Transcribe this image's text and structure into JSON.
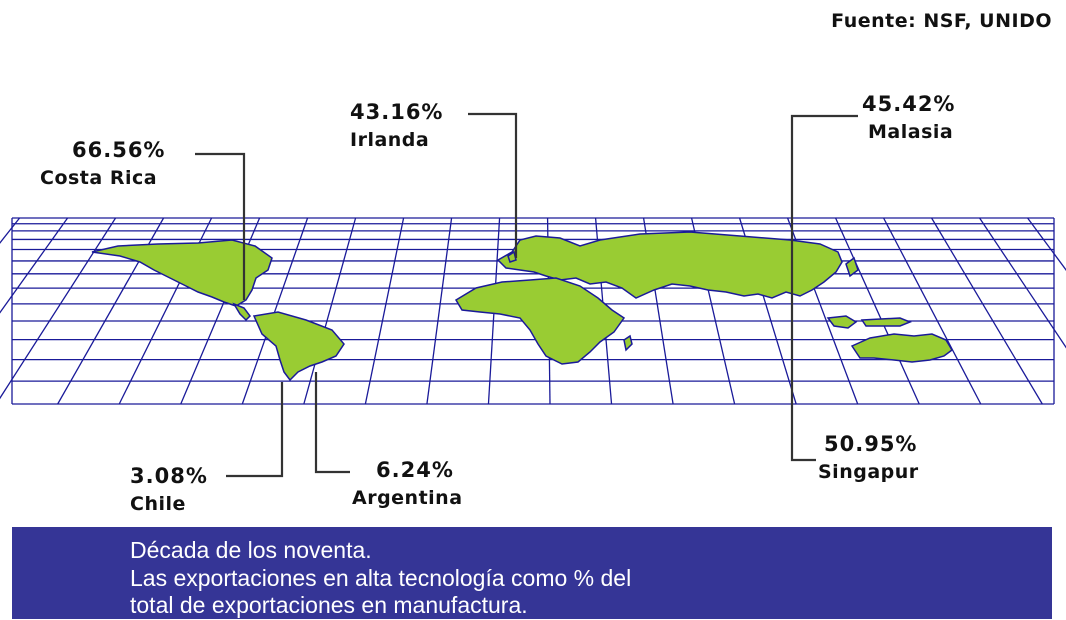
{
  "source": "Fuente: NSF, UNIDO",
  "colors": {
    "land": "#99cc33",
    "grid": "#1a1a99",
    "footer_bg": "#353596",
    "footer_text": "#ffffff"
  },
  "annotations": [
    {
      "id": "costa-rica",
      "value": "66.56%",
      "country": "Costa Rica"
    },
    {
      "id": "irlanda",
      "value": "43.16%",
      "country": "Irlanda"
    },
    {
      "id": "malasia",
      "value": "45.42%",
      "country": "Malasia"
    },
    {
      "id": "singapur",
      "value": "50.95%",
      "country": "Singapur"
    },
    {
      "id": "chile",
      "value": "3.08%",
      "country": "Chile"
    },
    {
      "id": "argentina",
      "value": "6.24%",
      "country": "Argentina"
    }
  ],
  "footer": {
    "line1": "Década de los noventa.",
    "line2": "Las exportaciones en alta tecnología como % del",
    "line3": "total de exportaciones en manufactura."
  }
}
